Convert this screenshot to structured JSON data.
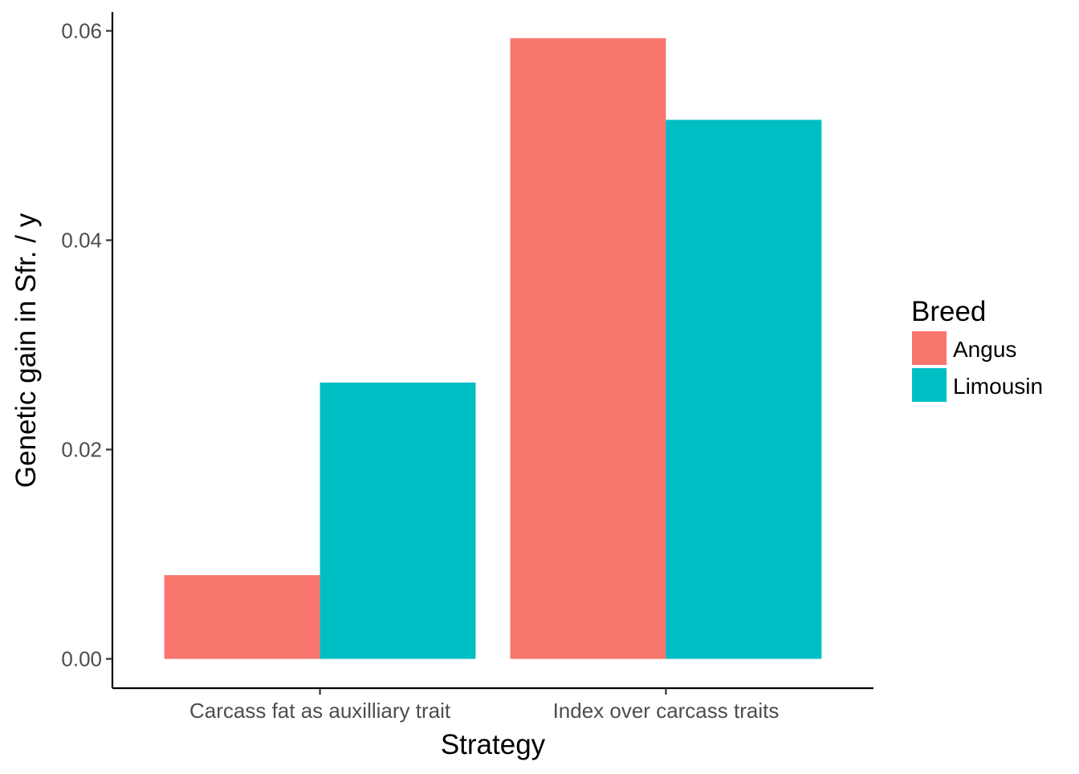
{
  "chart_data": {
    "type": "bar",
    "title": "",
    "xlabel": "Strategy",
    "ylabel": "Genetic gain in Sfr. / y",
    "categories": [
      "Carcass fat as auxilliary trait",
      "Index over carcass traits"
    ],
    "series": [
      {
        "name": "Angus",
        "color": "#F8766D",
        "values": [
          0.008,
          0.0593
        ]
      },
      {
        "name": "Limousin",
        "color": "#00BFC4",
        "values": [
          0.0264,
          0.0515
        ]
      }
    ],
    "ylim": [
      -0.0028,
      0.0618
    ],
    "yticks": [
      0.0,
      0.02,
      0.04,
      0.06
    ],
    "ytick_labels": [
      "0.00",
      "0.02",
      "0.04",
      "0.06"
    ],
    "grid": false,
    "legend": {
      "title": "Breed",
      "position": "right"
    }
  }
}
